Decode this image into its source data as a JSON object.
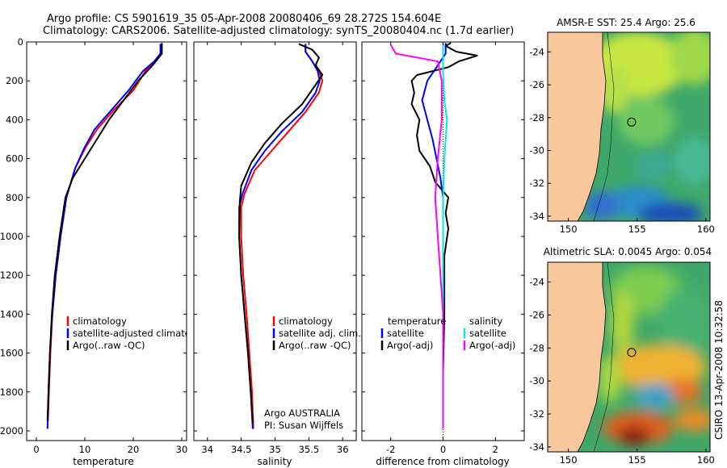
{
  "title": {
    "line1": "Argo profile: CS 5901619_35 05-Apr-2008 20080406_69 28.272S 154.604E",
    "line2": "Climatology: CARS2006. Satellite-adjusted climatology: synTS_20080404.nc (1.7d earlier)"
  },
  "credits": {
    "argo": "Argo AUSTRALIA",
    "pi": "PI: Susan Wijffels",
    "stamp": "CSIRO 13-Apr-2008 10:32:58"
  },
  "colors": {
    "climatology": "#ff0000",
    "satellite": "#0000ff",
    "argo": "#000000",
    "salinity_satellite": "#00e5ee",
    "salinity_argo": "#ff00ff",
    "land": "#f8c79b"
  },
  "chart_data": [
    {
      "type": "line",
      "id": "temperature",
      "xlabel": "temperature",
      "ylabel": "",
      "xlim": [
        -2,
        31
      ],
      "ylim": [
        2050,
        0
      ],
      "xticks": [
        0,
        10,
        20,
        30
      ],
      "yticks": [
        0,
        200,
        400,
        600,
        800,
        1000,
        1200,
        1400,
        1600,
        1800,
        2000
      ],
      "legend": {
        "position": "bottom-middle",
        "entries": [
          "climatology",
          "satellite-adjusted climatology",
          "Argo(..raw -QC)"
        ]
      },
      "series": [
        {
          "name": "climatology",
          "color": "#ff0000",
          "points": [
            [
              25.8,
              10
            ],
            [
              25.8,
              60
            ],
            [
              24.5,
              100
            ],
            [
              22.5,
              150
            ],
            [
              20,
              250
            ],
            [
              16,
              350
            ],
            [
              12.5,
              450
            ],
            [
              10,
              550
            ],
            [
              8,
              650
            ],
            [
              6.2,
              800
            ],
            [
              5,
              1000
            ],
            [
              4,
              1200
            ],
            [
              3.3,
              1400
            ],
            [
              2.9,
              1600
            ],
            [
              2.6,
              1800
            ],
            [
              2.4,
              1950
            ]
          ]
        },
        {
          "name": "satellite-adjusted climatology",
          "color": "#0000ff",
          "points": [
            [
              25.6,
              10
            ],
            [
              25.6,
              60
            ],
            [
              24.3,
              100
            ],
            [
              22,
              150
            ],
            [
              19,
              250
            ],
            [
              15.5,
              350
            ],
            [
              12,
              450
            ],
            [
              9.8,
              550
            ],
            [
              8,
              650
            ],
            [
              6.2,
              800
            ],
            [
              5,
              1000
            ],
            [
              4,
              1200
            ],
            [
              3.3,
              1400
            ],
            [
              2.8,
              1600
            ],
            [
              2.5,
              1800
            ],
            [
              2.3,
              1990
            ]
          ]
        },
        {
          "name": "Argo(..raw -QC)",
          "color": "#000000",
          "points": [
            [
              25.9,
              5
            ],
            [
              25.9,
              60
            ],
            [
              24,
              120
            ],
            [
              21,
              200
            ],
            [
              18,
              300
            ],
            [
              15,
              400
            ],
            [
              12.5,
              500
            ],
            [
              10,
              600
            ],
            [
              7.5,
              700
            ],
            [
              6,
              800
            ],
            [
              4.8,
              1000
            ],
            [
              3.8,
              1200
            ],
            [
              3.2,
              1400
            ],
            [
              2.8,
              1600
            ],
            [
              2.5,
              1800
            ],
            [
              2.3,
              1950
            ]
          ]
        }
      ]
    },
    {
      "type": "line",
      "id": "salinity",
      "xlabel": "salinity",
      "xlim": [
        33.8,
        36.2
      ],
      "ylim": [
        2050,
        0
      ],
      "xticks": [
        34,
        34.5,
        35,
        35.5,
        36
      ],
      "yticks": [
        0,
        200,
        400,
        600,
        800,
        1000,
        1200,
        1400,
        1600,
        1800,
        2000
      ],
      "legend": {
        "position": "bottom-right",
        "entries": [
          "climatology",
          "satellite adj. clim.",
          "Argo(..raw -QC)"
        ]
      },
      "series": [
        {
          "name": "climatology",
          "color": "#ff0000",
          "points": [
            [
              35.45,
              10
            ],
            [
              35.45,
              50
            ],
            [
              35.55,
              100
            ],
            [
              35.65,
              150
            ],
            [
              35.7,
              200
            ],
            [
              35.65,
              260
            ],
            [
              35.45,
              360
            ],
            [
              35.2,
              460
            ],
            [
              34.95,
              560
            ],
            [
              34.7,
              660
            ],
            [
              34.55,
              780
            ],
            [
              34.5,
              850
            ],
            [
              34.5,
              1000
            ],
            [
              34.53,
              1200
            ],
            [
              34.58,
              1400
            ],
            [
              34.62,
              1600
            ],
            [
              34.66,
              1800
            ],
            [
              34.68,
              1990
            ]
          ]
        },
        {
          "name": "satellite adj. clim.",
          "color": "#0000ff",
          "points": [
            [
              35.45,
              10
            ],
            [
              35.45,
              50
            ],
            [
              35.55,
              100
            ],
            [
              35.63,
              150
            ],
            [
              35.66,
              200
            ],
            [
              35.6,
              260
            ],
            [
              35.4,
              360
            ],
            [
              35.1,
              460
            ],
            [
              34.85,
              560
            ],
            [
              34.65,
              660
            ],
            [
              34.52,
              780
            ],
            [
              34.47,
              850
            ],
            [
              34.47,
              1000
            ],
            [
              34.5,
              1200
            ],
            [
              34.55,
              1400
            ],
            [
              34.6,
              1600
            ],
            [
              34.64,
              1800
            ],
            [
              34.67,
              1990
            ]
          ]
        },
        {
          "name": "Argo(..raw -QC)",
          "color": "#000000",
          "points": [
            [
              35.35,
              10
            ],
            [
              35.55,
              40
            ],
            [
              35.65,
              80
            ],
            [
              35.6,
              120
            ],
            [
              35.7,
              170
            ],
            [
              35.6,
              220
            ],
            [
              35.4,
              320
            ],
            [
              35.1,
              420
            ],
            [
              34.85,
              520
            ],
            [
              34.65,
              620
            ],
            [
              34.5,
              740
            ],
            [
              34.48,
              820
            ],
            [
              34.47,
              1000
            ],
            [
              34.5,
              1200
            ],
            [
              34.55,
              1400
            ],
            [
              34.6,
              1600
            ],
            [
              34.64,
              1800
            ],
            [
              34.67,
              1960
            ]
          ]
        }
      ]
    },
    {
      "type": "line",
      "id": "difference",
      "xlabel": "difference from climatology",
      "xlim": [
        -3.1,
        3.1
      ],
      "ylim": [
        2050,
        0
      ],
      "xticks": [
        -2,
        0,
        2
      ],
      "yticks": [
        0,
        200,
        400,
        600,
        800,
        1000,
        1200,
        1400,
        1600,
        1800,
        2000
      ],
      "legend": {
        "position": "bottom",
        "temperature_header": "temperature",
        "salinity_header": "salinity",
        "entries": [
          "satellite",
          "Argo(-adj)",
          "satellite",
          "Argo(-adj)"
        ]
      },
      "series": [
        {
          "name": "satellite",
          "group": "temperature",
          "color": "#0000ff",
          "points": [
            [
              0.1,
              5
            ],
            [
              0.1,
              60
            ],
            [
              -0.2,
              120
            ],
            [
              -0.6,
              200
            ],
            [
              -0.8,
              300
            ],
            [
              -0.6,
              400
            ],
            [
              -0.4,
              500
            ],
            [
              -0.25,
              600
            ],
            [
              -0.1,
              700
            ],
            [
              0,
              800
            ],
            [
              0,
              1000
            ],
            [
              0,
              1400
            ],
            [
              0,
              1990
            ]
          ]
        },
        {
          "name": "Argo(-adj)",
          "group": "temperature",
          "color": "#000000",
          "points": [
            [
              0.3,
              5
            ],
            [
              0.1,
              20
            ],
            [
              0.5,
              50
            ],
            [
              1.3,
              70
            ],
            [
              0.6,
              100
            ],
            [
              0.2,
              130
            ],
            [
              -1.0,
              170
            ],
            [
              -1.2,
              200
            ],
            [
              -1.1,
              260
            ],
            [
              -1.2,
              320
            ],
            [
              -0.9,
              400
            ],
            [
              -1.0,
              480
            ],
            [
              -0.9,
              560
            ],
            [
              -0.5,
              640
            ],
            [
              -0.3,
              720
            ],
            [
              0.2,
              800
            ],
            [
              0.1,
              880
            ],
            [
              0.2,
              960
            ],
            [
              0.05,
              1100
            ],
            [
              0.05,
              1400
            ],
            [
              0,
              1700
            ],
            [
              0,
              1990
            ]
          ]
        },
        {
          "name": "satellite",
          "group": "salinity",
          "color": "#00e5ee",
          "points": [
            [
              0,
              5
            ],
            [
              0,
              150
            ],
            [
              0.05,
              300
            ],
            [
              0.15,
              400
            ],
            [
              0.05,
              600
            ],
            [
              0,
              800
            ],
            [
              0,
              1000
            ],
            [
              0,
              1990
            ]
          ]
        },
        {
          "name": "Argo(-adj)",
          "group": "salinity",
          "color": "#ff00ff",
          "points": [
            [
              -2.0,
              15
            ],
            [
              -1.8,
              60
            ],
            [
              -1.0,
              80
            ],
            [
              -0.2,
              100
            ],
            [
              -0.05,
              200
            ],
            [
              -0.05,
              400
            ],
            [
              -0.2,
              600
            ],
            [
              -0.3,
              800
            ],
            [
              -0.2,
              1000
            ],
            [
              -0.1,
              1200
            ],
            [
              0,
              1400
            ],
            [
              0,
              1990
            ]
          ]
        }
      ]
    },
    {
      "type": "heatmap",
      "id": "sst_map",
      "title": "AMSR-E SST: 25.4 Argo: 25.6",
      "xlim": [
        148.5,
        160.3
      ],
      "ylim": [
        -34.3,
        -22.8
      ],
      "xticks": [
        150,
        155,
        160
      ],
      "yticks": [
        -24,
        -26,
        -28,
        -30,
        -32,
        -34
      ],
      "float_position": [
        154.6,
        -28.27
      ]
    },
    {
      "type": "heatmap",
      "id": "sla_map",
      "title": "Altimetric SLA: 0.0045 Argo: 0.054",
      "xlim": [
        148.5,
        160.3
      ],
      "ylim": [
        -34.3,
        -22.8
      ],
      "xticks": [
        150,
        155,
        160
      ],
      "yticks": [
        -24,
        -26,
        -28,
        -30,
        -32,
        -34
      ],
      "float_position": [
        154.6,
        -28.27
      ]
    }
  ]
}
